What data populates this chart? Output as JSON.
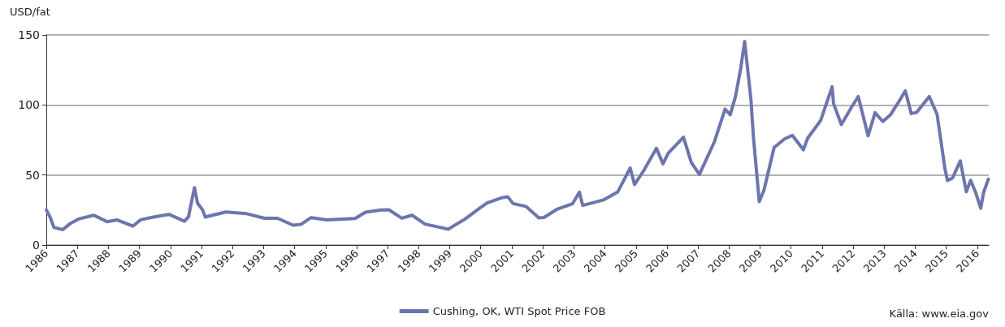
{
  "chart_data": {
    "type": "line",
    "ylabel": "USD/fat",
    "x": [
      "1986-01-02",
      "1986-02-15",
      "1986-04-01",
      "1986-07-15",
      "1986-10-01",
      "1987-01-15",
      "1987-07-15",
      "1987-12-15",
      "1988-04-15",
      "1988-10-15",
      "1989-01-15",
      "1989-06-15",
      "1989-12-15",
      "1990-06-15",
      "1990-08-01",
      "1990-09-15",
      "1990-10-11",
      "1990-11-15",
      "1991-01-15",
      "1991-02-15",
      "1991-10-15",
      "1992-06-15",
      "1993-01-15",
      "1993-06-15",
      "1993-12-15",
      "1994-03-15",
      "1994-07-15",
      "1995-01-15",
      "1995-12-15",
      "1996-04-15",
      "1996-10-15",
      "1997-01-15",
      "1997-06-15",
      "1997-10-15",
      "1998-03-15",
      "1998-12-15",
      "1999-03-15",
      "1999-06-15",
      "1999-12-15",
      "2000-03-15",
      "2000-09-15",
      "2000-11-15",
      "2001-01-15",
      "2001-06-15",
      "2001-11-15",
      "2002-01-15",
      "2002-06-15",
      "2002-12-15",
      "2003-03-07",
      "2003-04-15",
      "2003-12-15",
      "2004-06-01",
      "2004-10-25",
      "2004-12-15",
      "2005-04-01",
      "2005-08-30",
      "2005-11-15",
      "2006-01-15",
      "2006-07-14",
      "2006-10-15",
      "2007-01-18",
      "2007-07-15",
      "2007-11-15",
      "2008-01-15",
      "2008-03-15",
      "2008-05-15",
      "2008-07-03",
      "2008-09-15",
      "2008-10-15",
      "2008-12-22",
      "2009-02-15",
      "2009-06-15",
      "2009-10-15",
      "2010-01-15",
      "2010-05-25",
      "2010-07-15",
      "2010-12-15",
      "2011-04-29",
      "2011-05-15",
      "2011-08-15",
      "2011-12-15",
      "2012-03-01",
      "2012-06-25",
      "2012-09-15",
      "2012-12-15",
      "2013-03-15",
      "2013-07-15",
      "2013-09-06",
      "2013-11-15",
      "2014-01-15",
      "2014-06-15",
      "2014-09-15",
      "2014-12-15",
      "2015-01-15",
      "2015-03-15",
      "2015-06-15",
      "2015-08-25",
      "2015-10-15",
      "2015-12-15",
      "2016-02-11",
      "2016-03-15",
      "2016-05-10"
    ],
    "series": [
      {
        "name": "Cushing, OK, WTI Spot Price FOB",
        "color": "#6d75ad",
        "values": [
          25,
          20,
          12.5,
          11,
          15,
          18.6,
          21.3,
          16.7,
          17.9,
          13.5,
          18,
          20,
          21.9,
          17,
          20,
          33.5,
          41,
          30,
          25,
          20,
          23.6,
          22.4,
          19.1,
          19.1,
          14.2,
          14.7,
          19.6,
          18,
          19,
          23.5,
          25,
          25.2,
          19.2,
          21.3,
          15,
          11.3,
          14.7,
          17.9,
          26.1,
          30,
          33.9,
          34.4,
          29.6,
          27.6,
          19.4,
          19.7,
          25.5,
          29.4,
          37.8,
          28.3,
          32.2,
          38,
          55,
          43.2,
          53,
          69,
          58,
          65.5,
          77,
          58.9,
          50.5,
          74,
          97,
          93,
          105.5,
          125,
          145.3,
          104,
          76.6,
          31,
          39.1,
          69.6,
          75.7,
          78.3,
          68,
          76.3,
          89,
          113,
          101,
          86,
          98.6,
          106,
          78,
          94.5,
          88.2,
          92.9,
          104.7,
          110,
          93.9,
          94.6,
          106,
          93.2,
          55,
          46,
          47.8,
          60,
          38,
          46.2,
          37.2,
          26.2,
          37.5,
          47
        ]
      }
    ],
    "xlim": [
      "1986-01-01",
      "2016-05-15"
    ],
    "xticks": [
      "1986",
      "1987",
      "1988",
      "1989",
      "1990",
      "1991",
      "1992",
      "1993",
      "1994",
      "1995",
      "1996",
      "1997",
      "1998",
      "1999",
      "2000",
      "2001",
      "2002",
      "2003",
      "2004",
      "2005",
      "2006",
      "2007",
      "2008",
      "2009",
      "2010",
      "2011",
      "2012",
      "2013",
      "2014",
      "2015",
      "2016"
    ],
    "ylim": [
      0,
      150
    ],
    "yticks": [
      0,
      50,
      100,
      150
    ],
    "grid": "y",
    "legend": "bottom",
    "marker": "none",
    "line_style": "solid",
    "annotations": [
      "Källa: www.eia.gov"
    ]
  }
}
